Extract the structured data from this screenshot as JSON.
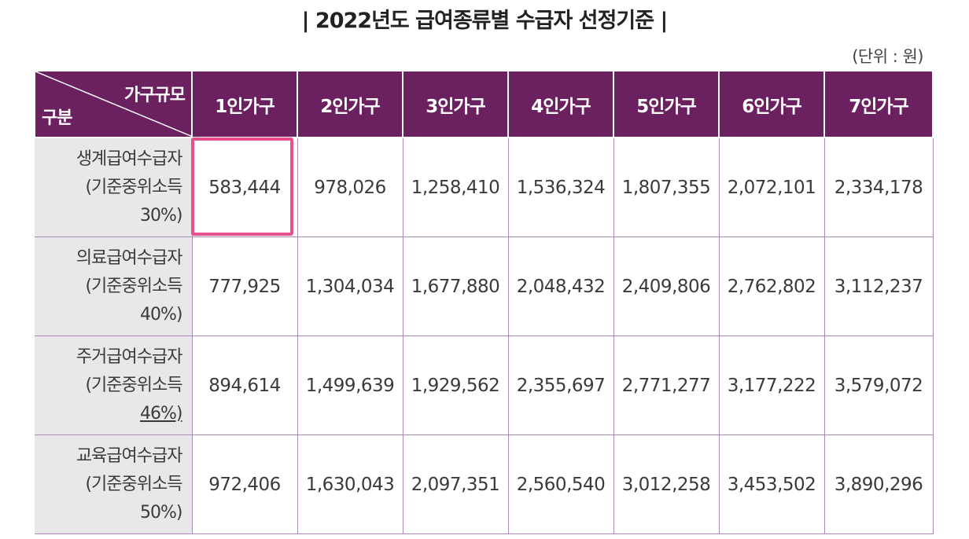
{
  "title": "| 2022년도 급여종류별 수급자 선정기준 |",
  "unit": "(단위 : 원)",
  "table": {
    "corner_top": "가구규모",
    "corner_bottom": "구분",
    "columns": [
      "1인가구",
      "2인가구",
      "3인가구",
      "4인가구",
      "5인가구",
      "6인가구",
      "7인가구"
    ],
    "rows": [
      {
        "label_lines": [
          "생계급여수급자",
          "(기준중위소득",
          "30%)"
        ],
        "values": [
          "583,444",
          "978,026",
          "1,258,410",
          "1,536,324",
          "1,807,355",
          "2,072,101",
          "2,334,178"
        ]
      },
      {
        "label_lines": [
          "의료급여수급자",
          "(기준중위소득",
          "40%)"
        ],
        "values": [
          "777,925",
          "1,304,034",
          "1,677,880",
          "2,048,432",
          "2,409,806",
          "2,762,802",
          "3,112,237"
        ]
      },
      {
        "label_lines": [
          "주거급여수급자",
          "(기준중위소득",
          "46%)"
        ],
        "values": [
          "894,614",
          "1,499,639",
          "1,929,562",
          "2,355,697",
          "2,771,277",
          "3,177,222",
          "3,579,072"
        ]
      },
      {
        "label_lines": [
          "교육급여수급자",
          "(기준중위소득",
          "50%)"
        ],
        "values": [
          "972,406",
          "1,630,043",
          "2,097,351",
          "2,560,540",
          "3,012,258",
          "3,453,502",
          "3,890,296"
        ]
      }
    ]
  },
  "highlight_color": "#e8508c",
  "header_color": "#6b2160"
}
